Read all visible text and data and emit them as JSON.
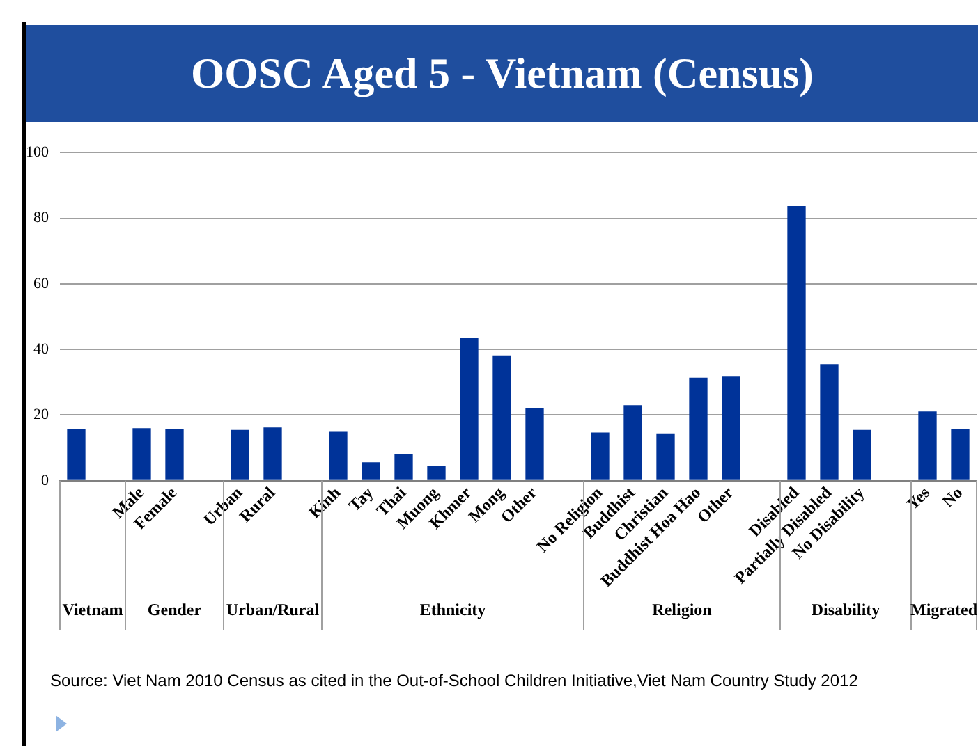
{
  "chart_data": {
    "type": "bar",
    "title": "OOSC Aged 5 - Vietnam (Census)",
    "categories": [
      null,
      null,
      "Male",
      "Female",
      null,
      "Urban",
      "Rural",
      null,
      "Kinh",
      "Tay",
      "Thai",
      "Muong",
      "Khmer",
      "Mong",
      "Other",
      null,
      "No Religion",
      "Buddhist",
      "Christian",
      "Buddhist Hoa Hao",
      "Other",
      null,
      "Disabled",
      "Partially Disabled",
      "No Disability",
      null,
      "Yes",
      "No"
    ],
    "values": [
      15.8,
      null,
      16.0,
      15.7,
      null,
      15.5,
      16.2,
      null,
      14.9,
      5.6,
      8.2,
      4.5,
      43.4,
      38.2,
      22.1,
      null,
      14.7,
      23.0,
      14.4,
      31.4,
      31.7,
      null,
      83.7,
      35.5,
      15.5,
      null,
      21.1,
      15.7
    ],
    "color": "#003399",
    "ylim": [
      0,
      100
    ],
    "yticks": [
      0,
      20,
      40,
      60,
      80,
      100
    ],
    "grid": "y",
    "annotations": [
      "Vietnam",
      "Gender",
      "Urban/Rural",
      "Ethnicity",
      "Religion",
      "Disability",
      "Migrated",
      "Source: Viet Nam 2010 Census as cited in the Out-of-School Children Initiative,Viet Nam Country Study 2012"
    ]
  }
}
